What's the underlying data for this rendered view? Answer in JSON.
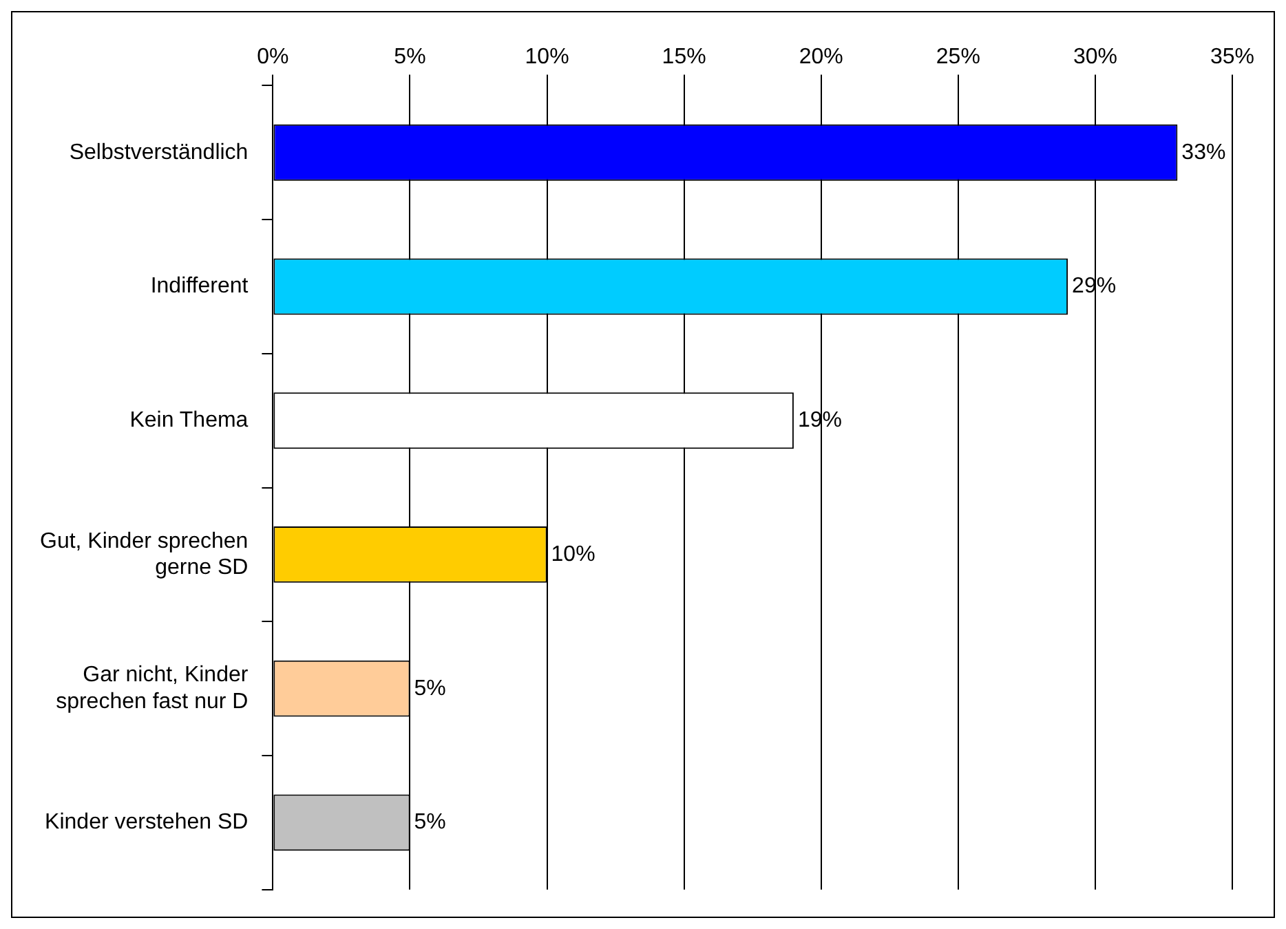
{
  "chart_data": {
    "type": "bar",
    "orientation": "horizontal",
    "categories": [
      "Selbstverständlich",
      "Indifferent",
      "Kein Thema",
      "Gut, Kinder sprechen gerne SD",
      "Gar nicht, Kinder sprechen fast nur D",
      "Kinder verstehen SD"
    ],
    "values": [
      33,
      29,
      19,
      10,
      5,
      5
    ],
    "colors": [
      "#0000ff",
      "#00ccff",
      "#ffffff",
      "#ffcc00",
      "#ffcc99",
      "#c0c0c0"
    ],
    "value_labels": [
      "33%",
      "29%",
      "19%",
      "10%",
      "5%",
      "5%"
    ],
    "xlim": [
      0,
      35
    ],
    "xticks": [
      {
        "value": 0,
        "label": "0%"
      },
      {
        "value": 5,
        "label": "5%"
      },
      {
        "value": 10,
        "label": "10%"
      },
      {
        "value": 15,
        "label": "15%"
      },
      {
        "value": 20,
        "label": "20%"
      },
      {
        "value": 25,
        "label": "25%"
      },
      {
        "value": 30,
        "label": "30%"
      },
      {
        "value": 35,
        "label": "35%"
      }
    ],
    "grid": "x",
    "legend": false
  }
}
